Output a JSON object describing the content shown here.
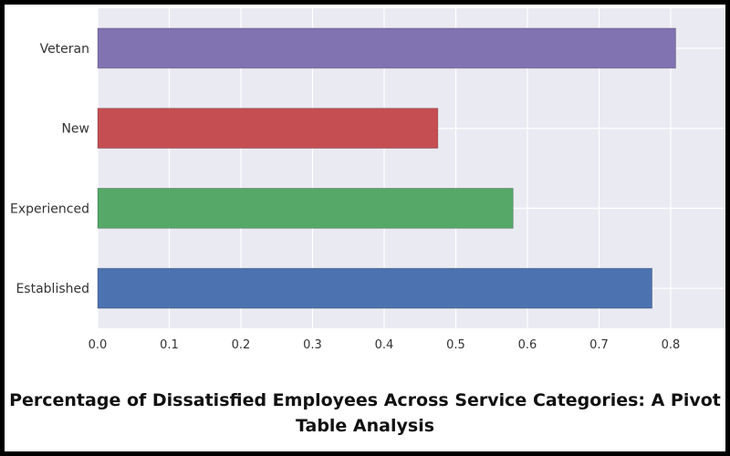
{
  "chart_data": {
    "type": "bar",
    "orientation": "horizontal",
    "title": "Percentage of Dissatisfied Employees Across Service Categories: A Pivot Table Analysis",
    "categories": [
      "Established",
      "Experienced",
      "New",
      "Veteran"
    ],
    "values": [
      0.774,
      0.58,
      0.475,
      0.807
    ],
    "colors": [
      "#4c72b0",
      "#55a868",
      "#c44e52",
      "#8172b2"
    ],
    "xlim": [
      0.0,
      0.88
    ],
    "xticks": [
      "0.0",
      "0.1",
      "0.2",
      "0.3",
      "0.4",
      "0.5",
      "0.6",
      "0.7",
      "0.8"
    ],
    "grid": true,
    "background": "#eaeaf2",
    "legend": "none"
  }
}
